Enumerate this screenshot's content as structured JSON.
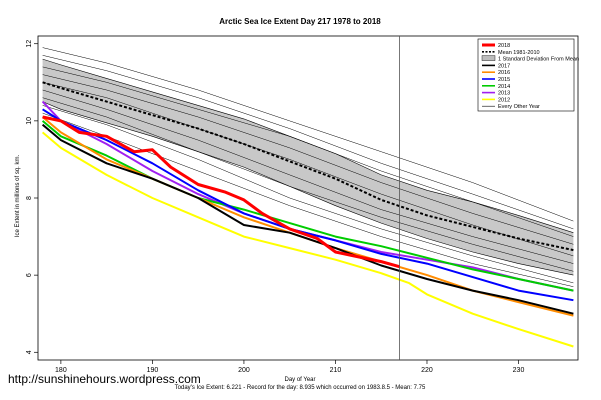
{
  "chart_data": {
    "type": "line",
    "title": "Arctic Sea Ice Extent Day 217 1978 to 2018",
    "xlabel": "Day of Year",
    "ylabel": "Ice Extent in millions of sq. km.",
    "xlim": [
      177.5,
      236.5
    ],
    "ylim": [
      3.8,
      12.2
    ],
    "xticks": [
      "180",
      "190",
      "200",
      "210",
      "220",
      "230"
    ],
    "yticks": [
      "4",
      "6",
      "8",
      "10",
      "12"
    ],
    "vline_day": 217,
    "grid": false,
    "legend_position": "top-right",
    "legend": [
      {
        "label": "2018",
        "color": "#ff0000",
        "style": "thick"
      },
      {
        "label": "Mean 1981-2010",
        "color": "#000000",
        "style": "dashed"
      },
      {
        "label": "1 Standard Deviation From Mean",
        "color": "#bdbdbd",
        "style": "box"
      },
      {
        "label": "2017",
        "color": "#000000",
        "style": "line"
      },
      {
        "label": "2016",
        "color": "#ff8c00",
        "style": "line"
      },
      {
        "label": "2015",
        "color": "#0000ff",
        "style": "line"
      },
      {
        "label": "2014",
        "color": "#00cc00",
        "style": "line"
      },
      {
        "label": "2013",
        "color": "#a020f0",
        "style": "line"
      },
      {
        "label": "2012",
        "color": "#ffff00",
        "style": "line"
      },
      {
        "label": "Every Other Year",
        "color": "#000000",
        "style": "thin"
      }
    ],
    "series": [
      {
        "name": "Mean 1981-2010",
        "color": "#000000",
        "width": 2,
        "dash": "3,2",
        "x": [
          178,
          180,
          185,
          190,
          195,
          200,
          205,
          210,
          215,
          220,
          225,
          230,
          236
        ],
        "y": [
          11.0,
          10.85,
          10.5,
          10.15,
          9.8,
          9.4,
          8.95,
          8.5,
          7.95,
          7.55,
          7.25,
          6.95,
          6.65
        ]
      },
      {
        "name": "Upper 1 SD",
        "color": "#000000",
        "width": 0.6,
        "dash": "",
        "x": [
          178,
          180,
          185,
          190,
          195,
          200,
          205,
          210,
          215,
          220,
          225,
          230,
          236
        ],
        "y": [
          11.6,
          11.45,
          11.1,
          10.75,
          10.4,
          10.05,
          9.6,
          9.15,
          8.6,
          8.2,
          7.9,
          7.55,
          7.1
        ]
      },
      {
        "name": "Lower 1 SD",
        "color": "#000000",
        "width": 0.6,
        "dash": "",
        "x": [
          178,
          180,
          185,
          190,
          195,
          200,
          205,
          210,
          215,
          220,
          225,
          230,
          236
        ],
        "y": [
          10.5,
          10.3,
          9.95,
          9.6,
          9.2,
          8.8,
          8.3,
          7.8,
          7.35,
          6.95,
          6.6,
          6.3,
          6.0
        ]
      },
      {
        "name": "Every Other Year",
        "color": "#000000",
        "width": 0.5,
        "dash": "",
        "x": [
          178,
          185,
          195,
          205,
          215,
          225,
          236
        ],
        "y": [
          11.9,
          11.5,
          10.8,
          10.0,
          9.2,
          8.4,
          7.4
        ]
      },
      {
        "name": "Every Other Year",
        "color": "#000000",
        "width": 0.5,
        "dash": "",
        "x": [
          178,
          185,
          195,
          205,
          215,
          225,
          236
        ],
        "y": [
          11.7,
          11.3,
          10.6,
          9.8,
          8.9,
          8.1,
          7.2
        ]
      },
      {
        "name": "Every Other Year",
        "color": "#000000",
        "width": 0.5,
        "dash": "",
        "x": [
          178,
          185,
          195,
          205,
          215,
          225,
          236
        ],
        "y": [
          11.4,
          11.0,
          10.3,
          9.6,
          8.7,
          7.9,
          7.0
        ]
      },
      {
        "name": "Every Other Year",
        "color": "#000000",
        "width": 0.5,
        "dash": "",
        "x": [
          178,
          185,
          195,
          205,
          215,
          225,
          236
        ],
        "y": [
          11.2,
          10.8,
          10.1,
          9.3,
          8.4,
          7.6,
          6.8
        ]
      },
      {
        "name": "Every Other Year",
        "color": "#000000",
        "width": 0.5,
        "dash": "",
        "x": [
          178,
          185,
          195,
          205,
          215,
          225,
          236
        ],
        "y": [
          11.0,
          10.6,
          9.8,
          9.0,
          8.1,
          7.3,
          6.5
        ]
      },
      {
        "name": "Every Other Year",
        "color": "#000000",
        "width": 0.5,
        "dash": "",
        "x": [
          178,
          185,
          195,
          205,
          215,
          225,
          236
        ],
        "y": [
          10.8,
          10.3,
          9.5,
          8.6,
          7.7,
          7.0,
          6.3
        ]
      },
      {
        "name": "Every Other Year",
        "color": "#000000",
        "width": 0.5,
        "dash": "",
        "x": [
          178,
          185,
          195,
          205,
          215,
          225,
          236
        ],
        "y": [
          10.6,
          10.1,
          9.2,
          8.3,
          7.5,
          6.8,
          6.1
        ]
      },
      {
        "name": "Every Other Year",
        "color": "#000000",
        "width": 0.5,
        "dash": "",
        "x": [
          178,
          185,
          195,
          205,
          215,
          225,
          236
        ],
        "y": [
          10.4,
          9.9,
          9.0,
          8.0,
          7.2,
          6.5,
          5.8
        ]
      },
      {
        "name": "Every Other Year",
        "color": "#000000",
        "width": 0.5,
        "dash": "",
        "x": [
          178,
          185,
          195,
          205,
          215,
          225,
          236
        ],
        "y": [
          10.2,
          9.6,
          8.7,
          7.8,
          7.0,
          6.3,
          5.7
        ]
      },
      {
        "name": "2012",
        "color": "#ffff00",
        "width": 2,
        "x": [
          178,
          180,
          185,
          190,
          195,
          200,
          205,
          210,
          215,
          218,
          220,
          225,
          230,
          236
        ],
        "y": [
          9.7,
          9.3,
          8.6,
          8.0,
          7.5,
          7.0,
          6.7,
          6.4,
          6.05,
          5.8,
          5.5,
          5.0,
          4.6,
          4.15
        ]
      },
      {
        "name": "2013",
        "color": "#a020f0",
        "width": 2,
        "x": [
          178,
          180,
          185,
          190,
          195,
          200,
          205,
          210,
          215,
          220,
          225,
          230,
          236
        ],
        "y": [
          10.5,
          10.0,
          9.4,
          8.7,
          8.1,
          7.6,
          7.2,
          6.9,
          6.6,
          6.4,
          6.2,
          5.9,
          5.6
        ]
      },
      {
        "name": "2014",
        "color": "#00cc00",
        "width": 2,
        "x": [
          178,
          180,
          185,
          190,
          195,
          200,
          205,
          210,
          215,
          220,
          225,
          230,
          236
        ],
        "y": [
          10.0,
          9.6,
          9.1,
          8.5,
          8.0,
          7.7,
          7.35,
          7.0,
          6.75,
          6.45,
          6.15,
          5.9,
          5.6
        ]
      },
      {
        "name": "2015",
        "color": "#0000ff",
        "width": 2,
        "x": [
          178,
          180,
          185,
          190,
          195,
          200,
          205,
          210,
          215,
          220,
          225,
          230,
          236
        ],
        "y": [
          10.3,
          10.0,
          9.5,
          8.9,
          8.2,
          7.6,
          7.2,
          6.9,
          6.55,
          6.3,
          5.95,
          5.6,
          5.35
        ]
      },
      {
        "name": "2016",
        "color": "#ff8c00",
        "width": 2,
        "x": [
          178,
          180,
          185,
          190,
          195,
          200,
          205,
          210,
          215,
          220,
          225,
          230,
          236
        ],
        "y": [
          10.1,
          9.7,
          9.0,
          8.5,
          8.0,
          7.5,
          7.1,
          6.7,
          6.35,
          6.0,
          5.6,
          5.3,
          4.95
        ]
      },
      {
        "name": "2017",
        "color": "#000000",
        "width": 2,
        "x": [
          178,
          180,
          185,
          190,
          195,
          200,
          205,
          210,
          215,
          220,
          225,
          230,
          236
        ],
        "y": [
          9.9,
          9.5,
          8.9,
          8.5,
          8.0,
          7.3,
          7.1,
          6.7,
          6.25,
          5.9,
          5.6,
          5.35,
          5.0
        ]
      },
      {
        "name": "2018",
        "color": "#ff0000",
        "width": 3,
        "x": [
          178,
          180,
          182,
          185,
          188,
          190,
          192,
          195,
          198,
          200,
          202,
          205,
          208,
          210,
          212,
          215,
          217
        ],
        "y": [
          10.1,
          10.0,
          9.7,
          9.6,
          9.2,
          9.25,
          8.8,
          8.35,
          8.15,
          7.95,
          7.6,
          7.2,
          6.95,
          6.6,
          6.5,
          6.35,
          6.22
        ]
      }
    ]
  },
  "watermark": "http://sunshinehours.wordpress.com",
  "footer": "Today's Ice Extent: 6.221  - Record for the day: 8.935 which occurred on 1983.8.5  - Mean: 7.75"
}
